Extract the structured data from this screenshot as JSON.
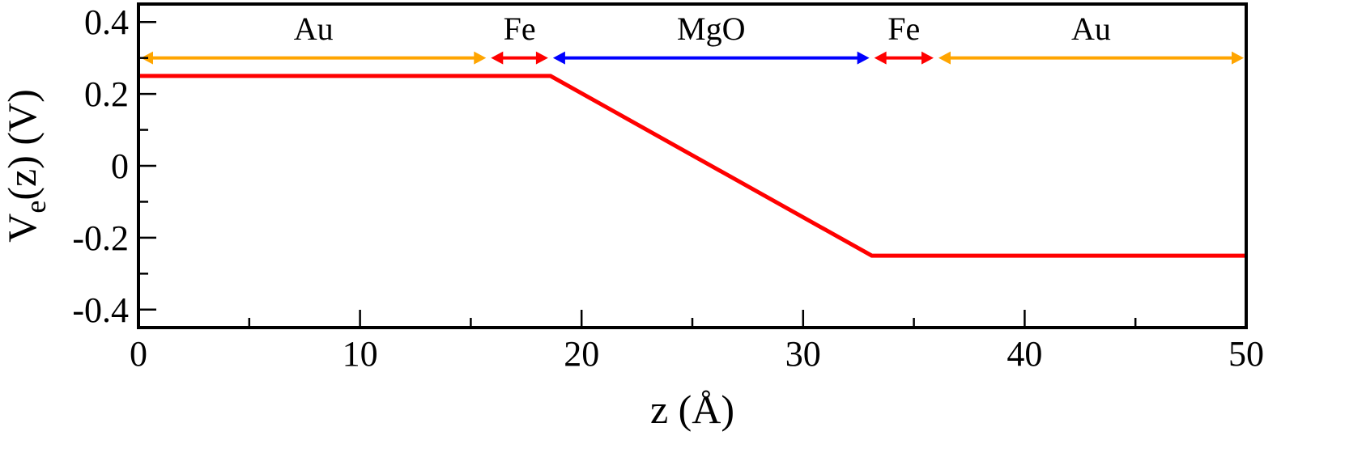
{
  "chart_data": {
    "type": "line",
    "xlabel": "z  (Å)",
    "ylabel": {
      "main": "V",
      "sub": "e",
      "rest": "(z) (V)"
    },
    "xlim": [
      0,
      50
    ],
    "ylim": [
      -0.45,
      0.45
    ],
    "x_ticks": [
      0,
      10,
      20,
      30,
      40,
      50
    ],
    "x_tick_labels": [
      "0",
      "10",
      "20",
      "30",
      "40",
      "50"
    ],
    "x_minor_ticks": [
      5,
      15,
      25,
      35,
      45
    ],
    "y_ticks": [
      -0.4,
      -0.2,
      0,
      0.2,
      0.4
    ],
    "y_tick_labels": [
      "-0.4",
      "-0.2",
      "0",
      "0.2",
      "0.4"
    ],
    "y_minor_ticks": [
      -0.3,
      -0.1,
      0.1,
      0.3
    ],
    "grid": false,
    "series": [
      {
        "color": "#ff0000",
        "x": [
          0,
          18.6,
          33.1,
          50
        ],
        "y": [
          0.25,
          0.25,
          -0.25,
          -0.25
        ]
      }
    ],
    "regions": [
      {
        "label": "Au",
        "start": 0,
        "end": 15.8,
        "color": "#ffa500"
      },
      {
        "label": "Fe",
        "start": 15.8,
        "end": 18.6,
        "color": "#ff0000"
      },
      {
        "label": "MgO",
        "start": 18.6,
        "end": 33.1,
        "color": "#0000ff"
      },
      {
        "label": "Fe",
        "start": 33.1,
        "end": 36.0,
        "color": "#ff0000"
      },
      {
        "label": "Au",
        "start": 36.0,
        "end": 50,
        "color": "#ffa500"
      }
    ],
    "region_arrow_y": 0.3
  }
}
